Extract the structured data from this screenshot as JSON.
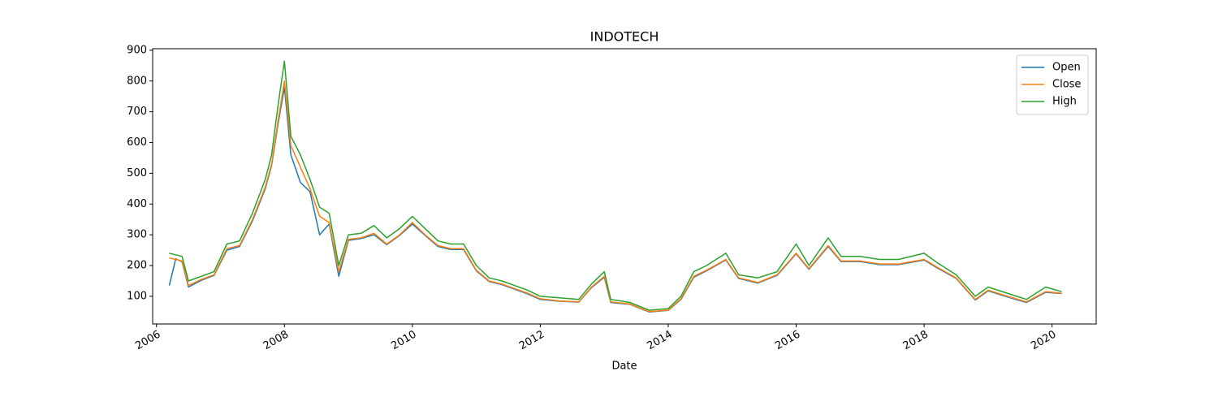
{
  "chart_data": {
    "type": "line",
    "title": "INDOTECH",
    "xlabel": "Date",
    "x": [
      2006.2,
      2006.3,
      2006.4,
      2006.5,
      2006.7,
      2006.9,
      2007.1,
      2007.3,
      2007.5,
      2007.7,
      2007.8,
      2007.9,
      2008.0,
      2008.1,
      2008.25,
      2008.4,
      2008.55,
      2008.7,
      2008.85,
      2009.0,
      2009.2,
      2009.4,
      2009.6,
      2009.8,
      2010.0,
      2010.2,
      2010.4,
      2010.6,
      2010.8,
      2011.0,
      2011.2,
      2011.4,
      2011.6,
      2011.8,
      2012.0,
      2012.3,
      2012.6,
      2012.8,
      2013.0,
      2013.1,
      2013.4,
      2013.7,
      2014.0,
      2014.2,
      2014.4,
      2014.6,
      2014.9,
      2015.1,
      2015.4,
      2015.7,
      2016.0,
      2016.2,
      2016.5,
      2016.7,
      2017.0,
      2017.3,
      2017.6,
      2018.0,
      2018.2,
      2018.5,
      2018.8,
      2019.0,
      2019.3,
      2019.6,
      2019.9,
      2020.15
    ],
    "series": [
      {
        "name": "Open",
        "color": "#1f77b4",
        "values": [
          135,
          222,
          212,
          130,
          152,
          168,
          250,
          262,
          345,
          450,
          525,
          660,
          780,
          560,
          470,
          440,
          300,
          335,
          165,
          282,
          288,
          300,
          268,
          298,
          335,
          298,
          262,
          252,
          252,
          183,
          148,
          138,
          123,
          108,
          90,
          84,
          81,
          128,
          162,
          80,
          74,
          49,
          54,
          90,
          162,
          183,
          218,
          158,
          143,
          168,
          238,
          188,
          262,
          213,
          213,
          203,
          203,
          218,
          193,
          158,
          88,
          118,
          98,
          80,
          113,
          109
        ]
      },
      {
        "name": "Close",
        "color": "#ff7f0e",
        "values": [
          225,
          220,
          215,
          135,
          155,
          170,
          255,
          265,
          350,
          455,
          530,
          670,
          800,
          590,
          520,
          450,
          360,
          340,
          180,
          285,
          290,
          305,
          270,
          300,
          340,
          300,
          265,
          255,
          255,
          185,
          150,
          140,
          125,
          110,
          92,
          85,
          82,
          130,
          165,
          82,
          75,
          50,
          55,
          92,
          165,
          185,
          220,
          160,
          145,
          170,
          240,
          190,
          265,
          215,
          215,
          205,
          205,
          220,
          195,
          160,
          90,
          120,
          100,
          82,
          115,
          110
        ]
      },
      {
        "name": "High",
        "color": "#2ca02c",
        "values": [
          240,
          235,
          230,
          150,
          165,
          180,
          270,
          280,
          370,
          480,
          560,
          720,
          865,
          620,
          560,
          480,
          390,
          370,
          200,
          300,
          305,
          330,
          290,
          320,
          360,
          320,
          280,
          270,
          270,
          200,
          160,
          150,
          135,
          120,
          100,
          95,
          90,
          140,
          180,
          90,
          80,
          55,
          60,
          100,
          180,
          200,
          240,
          170,
          160,
          180,
          270,
          200,
          290,
          230,
          230,
          220,
          220,
          240,
          210,
          170,
          100,
          130,
          110,
          90,
          130,
          115
        ]
      }
    ],
    "xlim": [
      2005.94,
      2020.69
    ],
    "xticks": [
      2006,
      2008,
      2010,
      2012,
      2014,
      2016,
      2018,
      2020
    ],
    "ylim": [
      10,
      905
    ],
    "yticks": [
      100,
      200,
      300,
      400,
      500,
      600,
      700,
      800,
      900
    ],
    "legend": "upper right"
  }
}
